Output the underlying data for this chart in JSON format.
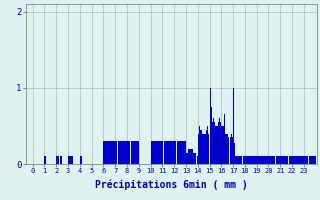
{
  "xlabel": "Précipitations 6min ( mm )",
  "background_color": "#dff2f2",
  "bar_color": "#0000cc",
  "grid_color": "#aabbbb",
  "ylim": [
    0,
    2.1
  ],
  "yticks": [
    0,
    1,
    2
  ],
  "xticks": [
    0,
    1,
    2,
    3,
    4,
    5,
    6,
    7,
    8,
    9,
    10,
    11,
    12,
    13,
    14,
    15,
    16,
    17,
    18,
    19,
    20,
    21,
    22,
    23
  ],
  "hour_patterns": [
    [
      0,
      0,
      0,
      0,
      0,
      0,
      0,
      0,
      0,
      0
    ],
    [
      0.1,
      0,
      0,
      0,
      0,
      0,
      0,
      0,
      0,
      0
    ],
    [
      0.1,
      0.1,
      0,
      0.1,
      0.1,
      0,
      0,
      0,
      0,
      0
    ],
    [
      0.1,
      0.1,
      0.1,
      0.1,
      0,
      0,
      0,
      0,
      0,
      0
    ],
    [
      0.1,
      0.1,
      0,
      0,
      0,
      0,
      0,
      0,
      0,
      0
    ],
    [
      0,
      0,
      0,
      0,
      0,
      0,
      0,
      0,
      0,
      0
    ],
    [
      0.3,
      0.3,
      0.3,
      0.3,
      0.3,
      0.3,
      0.3,
      0.3,
      0.3,
      0.3
    ],
    [
      0.3,
      0.3,
      0.3,
      0.3,
      0.3,
      0.3,
      0.3,
      0.3,
      0.3,
      0.3
    ],
    [
      0.3,
      0.3,
      0.3,
      0.3,
      0.3,
      0.3,
      0.3,
      0.3,
      0.3,
      0.3
    ],
    [
      0,
      0,
      0,
      0,
      0,
      0,
      0,
      0,
      0,
      0
    ],
    [
      0.3,
      0.3,
      0.3,
      0.3,
      0.3,
      0.3,
      0.3,
      0.3,
      0.3,
      0.3
    ],
    [
      0.3,
      0.3,
      0.3,
      0.3,
      0.3,
      0.3,
      0.3,
      0.3,
      0.3,
      0.3
    ],
    [
      0.3,
      0.3,
      0.3,
      0.3,
      0.3,
      0.3,
      0.3,
      0.3,
      0.3,
      0.3
    ],
    [
      0.15,
      0.15,
      0.2,
      0.2,
      0.2,
      0.2,
      0.15,
      0.15,
      0.15,
      0.1
    ],
    [
      0.4,
      0.5,
      0.45,
      0.45,
      0.4,
      0.4,
      0.4,
      0.45,
      0.5,
      0.4
    ],
    [
      1.0,
      0.75,
      0.55,
      0.6,
      0.55,
      0.5,
      0.5,
      0.55,
      0.6,
      0.55
    ],
    [
      0.5,
      0.5,
      0.65,
      0.4,
      0.4,
      0.4,
      0.35,
      0.35,
      0.4,
      0.35
    ],
    [
      1.0,
      0.28,
      0.1,
      0.1,
      0.1,
      0.1,
      0.1,
      0.1,
      0.1,
      0.1
    ],
    [
      0.1,
      0.1,
      0.1,
      0.1,
      0.1,
      0.1,
      0.1,
      0.1,
      0.1,
      0.1
    ],
    [
      0.1,
      0.1,
      0.1,
      0.1,
      0.1,
      0.1,
      0.1,
      0.1,
      0.1,
      0.1
    ],
    [
      0.1,
      0.1,
      0.1,
      0.1,
      0.1,
      0.1,
      0.1,
      0.1,
      0.1,
      0.1
    ],
    [
      0.1,
      0.1,
      0.1,
      0.1,
      0.1,
      0.1,
      0.1,
      0.1,
      0.1,
      0.1
    ],
    [
      0.1,
      0.1,
      0.1,
      0.1,
      0.1,
      0.1,
      0.1,
      0.1,
      0.1,
      0.1
    ],
    [
      0.1,
      0.1,
      0.1,
      0.1,
      0.1,
      0.1,
      0.1,
      0.1,
      0.1,
      0.1
    ]
  ]
}
